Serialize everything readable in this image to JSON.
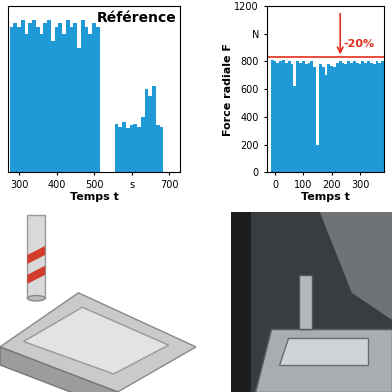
{
  "chart_data": [
    {
      "type": "bar",
      "title": "Référence",
      "x_label": "Temps t",
      "color": "#1f9ad6",
      "x": [
        280,
        290,
        300,
        310,
        320,
        330,
        340,
        350,
        360,
        370,
        380,
        390,
        400,
        410,
        420,
        430,
        440,
        450,
        460,
        470,
        480,
        490,
        500,
        510,
        520,
        530,
        540,
        550,
        560,
        570,
        580,
        590,
        600,
        610,
        620,
        630,
        640,
        650,
        660,
        670,
        680,
        690,
        700,
        710,
        720
      ],
      "values": [
        1050,
        1080,
        1050,
        1100,
        1000,
        1080,
        1100,
        1050,
        1000,
        1080,
        1100,
        950,
        1050,
        1080,
        1000,
        1100,
        1050,
        1080,
        900,
        1100,
        1050,
        1000,
        1080,
        1050,
        0,
        0,
        0,
        0,
        350,
        330,
        360,
        320,
        340,
        350,
        330,
        400,
        600,
        550,
        620,
        340,
        330,
        0,
        0,
        0,
        0
      ],
      "xlim": [
        270,
        730
      ],
      "ylim": [
        0,
        1200
      ],
      "xticks": [
        300,
        400,
        500,
        {
          "value": 600,
          "label": "s"
        },
        700
      ],
      "tick_labels": "x"
    },
    {
      "type": "bar",
      "x_label": "Temps t",
      "y_label": "Force radiale F",
      "color": "#1f9ad6",
      "x": [
        -10,
        0,
        10,
        20,
        30,
        40,
        50,
        60,
        70,
        80,
        90,
        100,
        110,
        120,
        130,
        140,
        150,
        160,
        170,
        180,
        190,
        200,
        210,
        220,
        230,
        240,
        250,
        260,
        270,
        280,
        290,
        300,
        310,
        320,
        330,
        340,
        350,
        360,
        370,
        380
      ],
      "values": [
        810,
        800,
        790,
        800,
        810,
        790,
        800,
        780,
        620,
        800,
        790,
        800,
        780,
        790,
        800,
        760,
        200,
        780,
        760,
        700,
        780,
        770,
        760,
        790,
        800,
        790,
        780,
        800,
        790,
        800,
        790,
        780,
        800,
        790,
        800,
        790,
        780,
        800,
        790,
        800
      ],
      "xlim": [
        -30,
        385
      ],
      "ylim": [
        0,
        1200
      ],
      "xticks": [
        0,
        100,
        200,
        300
      ],
      "yticks": [
        0,
        200,
        400,
        600,
        800,
        {
          "value": 1000,
          "label": "N"
        },
        1200
      ],
      "annotations": [
        {
          "text": "-20%",
          "x": 230,
          "y": 830,
          "color": "#e0301e"
        }
      ]
    }
  ]
}
